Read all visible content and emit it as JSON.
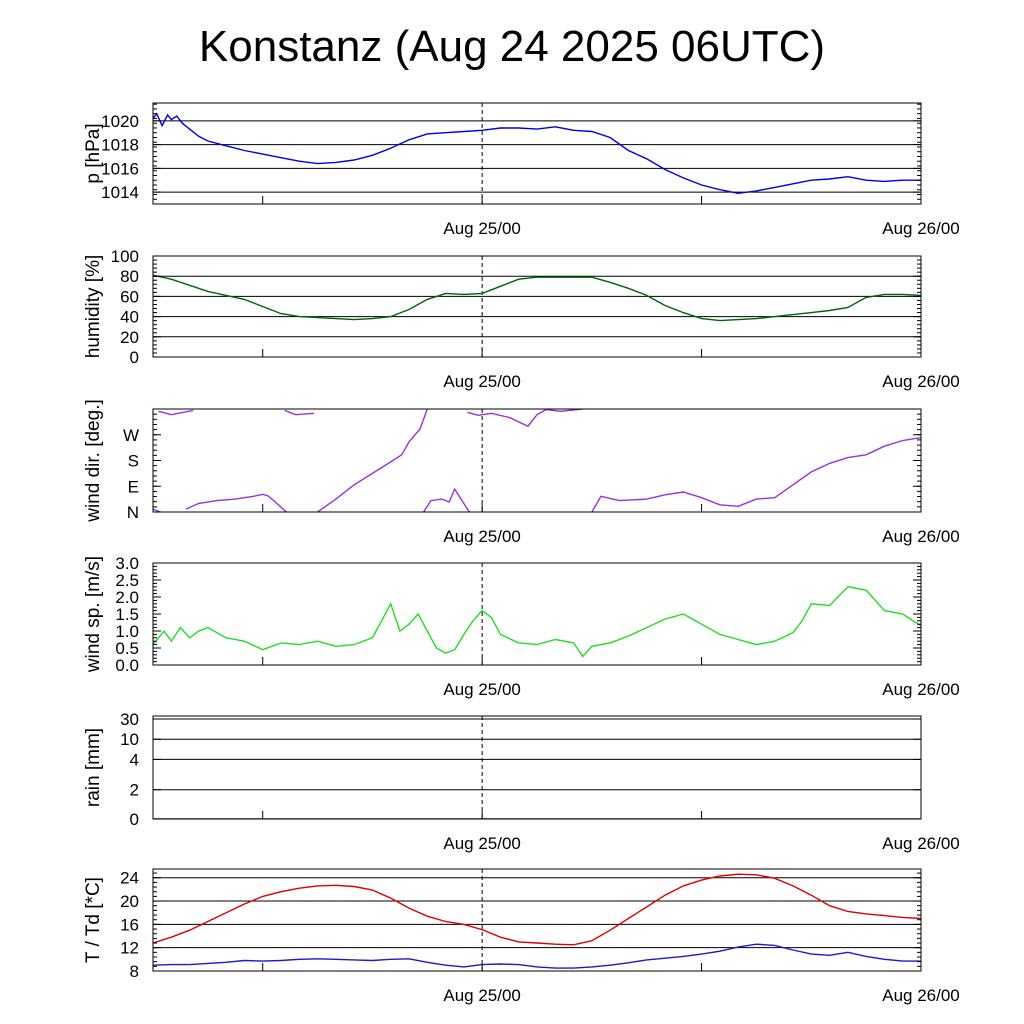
{
  "title": "Konstanz (Aug 24 2025 06UTC)",
  "x_axis": {
    "start": "Aug 24 2025 06UTC",
    "end": "Aug 26 2025 00UTC",
    "tick_labels": [
      {
        "label": "Aug 25/00",
        "hours_from_start": 18
      },
      {
        "label": "Aug 26/00",
        "hours_from_start": 42
      }
    ],
    "minor_ticks_hours": [
      6,
      30
    ],
    "marker_hours": 18
  },
  "chart_data": [
    {
      "type": "line",
      "ylabel": "p [hPa]",
      "ylim": [
        1013,
        1021.5
      ],
      "yticks": [
        1014,
        1016,
        1018,
        1020
      ],
      "ytick_labels": [
        "1014",
        "1016",
        "1018",
        "1020"
      ],
      "grid_lines": [
        1014,
        1016,
        1018,
        1020
      ],
      "series": [
        {
          "color": "#0000e0",
          "x": [
            0,
            0.2,
            0.5,
            0.8,
            1,
            1.3,
            1.6,
            2,
            2.5,
            3,
            4,
            5,
            6,
            7,
            8,
            9,
            10,
            11,
            12,
            13,
            14,
            15,
            16,
            17,
            18,
            19,
            20,
            21,
            22,
            23,
            24,
            25,
            26,
            27,
            28,
            29,
            30,
            31,
            32,
            33,
            34,
            35,
            36,
            37,
            38,
            39,
            40,
            41,
            42
          ],
          "y": [
            1020.2,
            1020.6,
            1019.6,
            1020.5,
            1020.1,
            1020.4,
            1019.8,
            1019.3,
            1018.7,
            1018.3,
            1017.9,
            1017.5,
            1017.2,
            1016.9,
            1016.6,
            1016.4,
            1016.5,
            1016.7,
            1017.1,
            1017.7,
            1018.4,
            1018.9,
            1019.0,
            1019.1,
            1019.2,
            1019.4,
            1019.4,
            1019.3,
            1019.5,
            1019.2,
            1019.1,
            1018.6,
            1017.5,
            1016.8,
            1015.9,
            1015.2,
            1014.6,
            1014.2,
            1013.9,
            1014.1,
            1014.4,
            1014.7,
            1015.0,
            1015.1,
            1015.3,
            1015.0,
            1014.9,
            1015.0,
            1015.0
          ]
        }
      ]
    },
    {
      "type": "line",
      "ylabel": "humidity [%]",
      "ylim": [
        0,
        100
      ],
      "yticks": [
        0,
        20,
        40,
        60,
        80,
        100
      ],
      "ytick_labels": [
        "0",
        "20",
        "40",
        "60",
        "80",
        "100"
      ],
      "grid_lines": [
        20,
        40,
        60,
        80
      ],
      "series": [
        {
          "color": "#006400",
          "x": [
            0,
            1,
            2,
            3,
            4,
            5,
            6,
            7,
            8,
            9,
            10,
            11,
            12,
            13,
            14,
            15,
            16,
            17,
            18,
            19,
            20,
            21,
            22,
            23,
            24,
            25,
            26,
            27,
            28,
            29,
            30,
            31,
            32,
            33,
            34,
            35,
            36,
            37,
            38,
            39,
            40,
            41,
            42
          ],
          "y": [
            81,
            77,
            71,
            65,
            61,
            57,
            50,
            43,
            40,
            39,
            38,
            37,
            38,
            40,
            47,
            57,
            63,
            62,
            63,
            70,
            77,
            79,
            79,
            79,
            79,
            74,
            68,
            61,
            51,
            44,
            38,
            36,
            37,
            38,
            40,
            42,
            44,
            46,
            49,
            59,
            62,
            62,
            61
          ]
        }
      ]
    },
    {
      "type": "line",
      "ylabel": "wind dir. [deg.]",
      "ylim": [
        0,
        360
      ],
      "yticks": [
        0,
        90,
        180,
        270
      ],
      "ytick_labels": [
        "N",
        "E",
        "S",
        "W"
      ],
      "grid_lines": [],
      "series": [
        {
          "color": "#9a30e0",
          "x": [
            0.3,
            1,
            2.2
          ],
          "y": [
            352,
            340,
            355
          ]
        },
        {
          "color": "#9a30e0",
          "x": [
            0,
            0.4
          ],
          "y": [
            10,
            0
          ]
        },
        {
          "color": "#9a30e0",
          "x": [
            1.8,
            2.5,
            3.5,
            4.5,
            5.5,
            6.0,
            6.3,
            6.6,
            7.3
          ],
          "y": [
            10,
            30,
            40,
            45,
            55,
            62,
            56,
            40,
            0
          ]
        },
        {
          "color": "#9a30e0",
          "x": [
            7.2,
            7.8,
            8.8
          ],
          "y": [
            355,
            340,
            345
          ]
        },
        {
          "color": "#9a30e0",
          "x": [
            9.0,
            10.0,
            11.0,
            12.0,
            13.0,
            13.6,
            14.0,
            14.6,
            15.0
          ],
          "y": [
            0,
            45,
            95,
            135,
            175,
            200,
            245,
            290,
            360
          ]
        },
        {
          "color": "#9a30e0",
          "x": [
            14.8,
            15.2,
            15.8,
            16.2,
            16.5,
            16.8,
            17.3
          ],
          "y": [
            0,
            40,
            45,
            35,
            80,
            50,
            0
          ]
        },
        {
          "color": "#9a30e0",
          "x": [
            17.2,
            17.8,
            18.5,
            19.5,
            20.5,
            21.0,
            21.5,
            22.3,
            23.5
          ],
          "y": [
            348,
            338,
            345,
            330,
            300,
            340,
            358,
            352,
            360
          ]
        },
        {
          "color": "#9a30e0",
          "x": [
            24.0,
            24.5,
            25.5,
            27.0,
            28.0,
            29.0,
            30.0,
            31.0,
            32.0,
            33.0,
            34.0,
            35.0,
            36.0,
            37.0,
            38.0,
            39.0,
            40.0,
            41.0,
            42.0
          ],
          "y": [
            0,
            55,
            40,
            45,
            60,
            70,
            50,
            25,
            20,
            45,
            50,
            95,
            140,
            170,
            190,
            200,
            230,
            250,
            260
          ]
        }
      ]
    },
    {
      "type": "line",
      "ylabel": "wind sp. [m/s]",
      "ylim": [
        0,
        3
      ],
      "yticks": [
        0,
        0.5,
        1,
        1.5,
        2,
        2.5,
        3
      ],
      "ytick_labels": [
        "0.0",
        "0.5",
        "1.0",
        "1.5",
        "2.0",
        "2.5",
        "3.0"
      ],
      "grid_lines": [],
      "series": [
        {
          "color": "#22dd22",
          "x": [
            0,
            0.3,
            0.6,
            1,
            1.5,
            2,
            2.5,
            3,
            4,
            5,
            6,
            7,
            8,
            9,
            10,
            11,
            12,
            12.5,
            13,
            13.5,
            14,
            14.5,
            15,
            15.5,
            16,
            16.5,
            17,
            17.5,
            18,
            18.5,
            19,
            20,
            21,
            22,
            23,
            23.5,
            24,
            25,
            26,
            27,
            28,
            29,
            30,
            31,
            32,
            33,
            34,
            35,
            35.5,
            36,
            37,
            38,
            39,
            40,
            41,
            42
          ],
          "y": [
            0.6,
            0.8,
            1.0,
            0.7,
            1.1,
            0.8,
            1.0,
            1.1,
            0.8,
            0.7,
            0.45,
            0.65,
            0.6,
            0.7,
            0.55,
            0.6,
            0.8,
            1.3,
            1.8,
            1.0,
            1.2,
            1.5,
            1.0,
            0.5,
            0.35,
            0.45,
            0.9,
            1.3,
            1.6,
            1.4,
            0.9,
            0.65,
            0.6,
            0.75,
            0.65,
            0.25,
            0.55,
            0.65,
            0.85,
            1.1,
            1.35,
            1.5,
            1.2,
            0.9,
            0.75,
            0.6,
            0.7,
            0.95,
            1.3,
            1.8,
            1.75,
            2.3,
            2.2,
            1.6,
            1.5,
            1.15
          ]
        }
      ]
    },
    {
      "type": "line",
      "ylabel": "rain [mm]",
      "ylim": [
        0,
        30
      ],
      "scale": "nonlinear",
      "yticks": [
        0,
        2,
        4,
        10,
        30
      ],
      "ytick_labels": [
        "0",
        "2",
        "4",
        "10",
        "30"
      ],
      "grid_lines": [
        2,
        4,
        10,
        30
      ],
      "series": [
        {
          "color": "#000080",
          "x": [
            0,
            42
          ],
          "y": [
            0,
            0
          ]
        }
      ]
    },
    {
      "type": "line",
      "ylabel": "T / Td [*C]",
      "ylim": [
        8,
        25.5
      ],
      "yticks": [
        8,
        12,
        16,
        20,
        24
      ],
      "ytick_labels": [
        "8",
        "12",
        "16",
        "20",
        "24"
      ],
      "grid_lines": [
        12,
        16,
        20,
        24
      ],
      "series": [
        {
          "color": "#e00000",
          "x": [
            0,
            1,
            2,
            3,
            4,
            5,
            6,
            7,
            8,
            9,
            10,
            11,
            12,
            13,
            14,
            15,
            16,
            17,
            18,
            19,
            20,
            21,
            22,
            23,
            24,
            25,
            26,
            27,
            28,
            29,
            30,
            31,
            32,
            33,
            34,
            35,
            36,
            37,
            38,
            39,
            40,
            41,
            42
          ],
          "y": [
            12.8,
            13.8,
            15.0,
            16.5,
            18.0,
            19.5,
            20.8,
            21.6,
            22.2,
            22.6,
            22.7,
            22.5,
            21.9,
            20.5,
            18.8,
            17.4,
            16.5,
            16.0,
            15.1,
            13.8,
            13.0,
            12.8,
            12.6,
            12.5,
            13.2,
            15.0,
            17.0,
            19.0,
            21.0,
            22.6,
            23.6,
            24.3,
            24.6,
            24.5,
            23.9,
            22.6,
            21.0,
            19.2,
            18.2,
            17.8,
            17.5,
            17.2,
            17.0
          ]
        },
        {
          "color": "#1a1ad0",
          "x": [
            0,
            1,
            2,
            3,
            4,
            5,
            6,
            7,
            8,
            9,
            10,
            11,
            12,
            13,
            14,
            15,
            16,
            17,
            18,
            19,
            20,
            21,
            22,
            23,
            24,
            25,
            26,
            27,
            28,
            29,
            30,
            31,
            32,
            33,
            34,
            35,
            36,
            37,
            38,
            39,
            40,
            41,
            42
          ],
          "y": [
            9.0,
            9.1,
            9.1,
            9.3,
            9.5,
            9.8,
            9.7,
            9.8,
            10.0,
            10.1,
            10.0,
            9.9,
            9.8,
            10.0,
            10.1,
            9.5,
            9.0,
            8.7,
            9.1,
            9.2,
            9.1,
            8.7,
            8.5,
            8.5,
            8.7,
            9.0,
            9.4,
            9.9,
            10.2,
            10.5,
            10.9,
            11.4,
            12.1,
            12.6,
            12.4,
            11.6,
            10.9,
            10.7,
            11.2,
            10.5,
            10.0,
            9.7,
            9.7
          ]
        }
      ]
    }
  ]
}
